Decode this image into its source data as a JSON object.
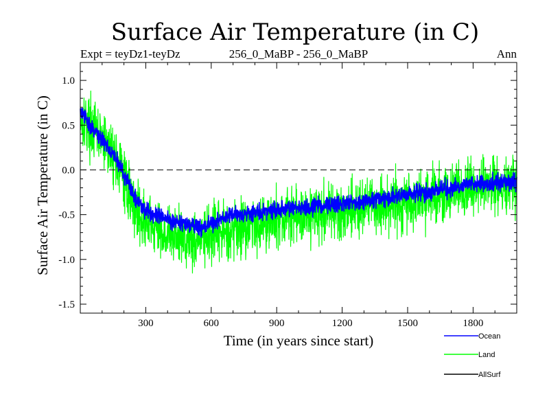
{
  "chart_data": {
    "type": "line",
    "title": "Surface Air Temperature (in C)",
    "subtitle_left": "Expt = teyDz1-teyDz",
    "subtitle_center": "256_0_MaBP - 256_0_MaBP",
    "subtitle_right": "Ann",
    "xlabel": "Time (in years since start)",
    "ylabel": "Surface Air Temperature (in C)",
    "xlim": [
      0,
      2000
    ],
    "ylim": [
      -1.6,
      1.2
    ],
    "xticks": [
      300,
      600,
      900,
      1200,
      1500,
      1800
    ],
    "yticks": [
      -1.5,
      -1.0,
      -0.5,
      0.0,
      0.5,
      1.0
    ],
    "ytick_labels": [
      "-1.5",
      "-1.0",
      "-0.5",
      "0.0",
      "0.5",
      "1.0"
    ],
    "reference_line": 0.0,
    "legend": {
      "placement": "bottom-right"
    },
    "series": [
      {
        "name": "Ocean",
        "color": "#0000ff",
        "noise": 0.045,
        "trend": [
          [
            0,
            0.65
          ],
          [
            60,
            0.45
          ],
          [
            120,
            0.28
          ],
          [
            160,
            0.15
          ],
          [
            200,
            -0.05
          ],
          [
            250,
            -0.3
          ],
          [
            300,
            -0.45
          ],
          [
            400,
            -0.55
          ],
          [
            550,
            -0.65
          ],
          [
            600,
            -0.6
          ],
          [
            700,
            -0.5
          ],
          [
            800,
            -0.48
          ],
          [
            900,
            -0.45
          ],
          [
            1000,
            -0.42
          ],
          [
            1100,
            -0.4
          ],
          [
            1200,
            -0.38
          ],
          [
            1300,
            -0.35
          ],
          [
            1400,
            -0.32
          ],
          [
            1500,
            -0.28
          ],
          [
            1600,
            -0.25
          ],
          [
            1700,
            -0.2
          ],
          [
            1800,
            -0.16
          ],
          [
            1900,
            -0.14
          ],
          [
            2000,
            -0.13
          ]
        ]
      },
      {
        "name": "Land",
        "color": "#00ff00",
        "noise": 0.16,
        "trend": [
          [
            0,
            0.6
          ],
          [
            60,
            0.45
          ],
          [
            120,
            0.28
          ],
          [
            160,
            0.15
          ],
          [
            200,
            -0.1
          ],
          [
            250,
            -0.4
          ],
          [
            300,
            -0.6
          ],
          [
            400,
            -0.72
          ],
          [
            550,
            -0.78
          ],
          [
            600,
            -0.75
          ],
          [
            700,
            -0.65
          ],
          [
            800,
            -0.6
          ],
          [
            900,
            -0.55
          ],
          [
            1000,
            -0.5
          ],
          [
            1100,
            -0.48
          ],
          [
            1200,
            -0.45
          ],
          [
            1300,
            -0.42
          ],
          [
            1400,
            -0.38
          ],
          [
            1500,
            -0.35
          ],
          [
            1600,
            -0.3
          ],
          [
            1700,
            -0.25
          ],
          [
            1800,
            -0.2
          ],
          [
            1900,
            -0.18
          ],
          [
            2000,
            -0.15
          ]
        ]
      },
      {
        "name": "AllSurf",
        "color": "#000000",
        "noise": 0,
        "trend": []
      }
    ]
  }
}
